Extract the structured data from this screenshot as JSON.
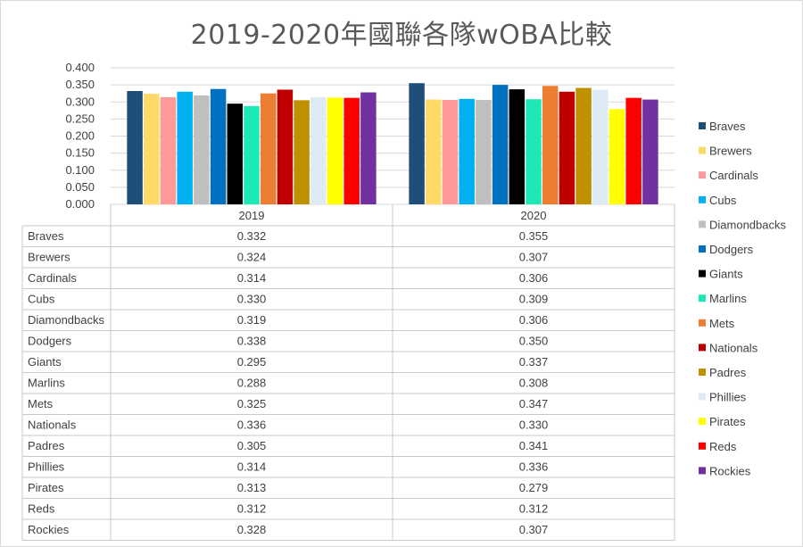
{
  "chart_data": {
    "type": "bar",
    "title": "2019-2020年國聯各隊wOBA比較",
    "categories": [
      "2019",
      "2020"
    ],
    "ylim": [
      0,
      0.4
    ],
    "y_ticks": [
      "0.000",
      "0.050",
      "0.100",
      "0.150",
      "0.200",
      "0.250",
      "0.300",
      "0.350",
      "0.400"
    ],
    "grid": true,
    "legend_position": "right",
    "data_table": true,
    "series": [
      {
        "name": "Braves",
        "color": "#1f4e79",
        "values": [
          0.332,
          0.355
        ],
        "labels": [
          "0.332",
          "0.355"
        ]
      },
      {
        "name": "Brewers",
        "color": "#ffd966",
        "values": [
          0.324,
          0.307
        ],
        "labels": [
          "0.324",
          "0.307"
        ]
      },
      {
        "name": "Cardinals",
        "color": "#ff9999",
        "values": [
          0.314,
          0.306
        ],
        "labels": [
          "0.314",
          "0.306"
        ]
      },
      {
        "name": "Cubs",
        "color": "#00b0f0",
        "values": [
          0.33,
          0.309
        ],
        "labels": [
          "0.330",
          "0.309"
        ]
      },
      {
        "name": "Diamondbacks",
        "color": "#bfbfbf",
        "values": [
          0.319,
          0.306
        ],
        "labels": [
          "0.319",
          "0.306"
        ]
      },
      {
        "name": "Dodgers",
        "color": "#0070c0",
        "values": [
          0.338,
          0.35
        ],
        "labels": [
          "0.338",
          "0.350"
        ]
      },
      {
        "name": "Giants",
        "color": "#000000",
        "values": [
          0.295,
          0.337
        ],
        "labels": [
          "0.295",
          "0.337"
        ]
      },
      {
        "name": "Marlins",
        "color": "#1de9b6",
        "values": [
          0.288,
          0.308
        ],
        "labels": [
          "0.288",
          "0.308"
        ]
      },
      {
        "name": "Mets",
        "color": "#ed7d31",
        "values": [
          0.325,
          0.347
        ],
        "labels": [
          "0.325",
          "0.347"
        ]
      },
      {
        "name": "Nationals",
        "color": "#c00000",
        "values": [
          0.336,
          0.33
        ],
        "labels": [
          "0.336",
          "0.330"
        ]
      },
      {
        "name": "Padres",
        "color": "#bf9000",
        "values": [
          0.305,
          0.341
        ],
        "labels": [
          "0.305",
          "0.341"
        ]
      },
      {
        "name": "Phillies",
        "color": "#deebf7",
        "values": [
          0.314,
          0.336
        ],
        "labels": [
          "0.314",
          "0.336"
        ]
      },
      {
        "name": "Pirates",
        "color": "#ffff00",
        "values": [
          0.313,
          0.279
        ],
        "labels": [
          "0.313",
          "0.279"
        ]
      },
      {
        "name": "Reds",
        "color": "#ff0000",
        "values": [
          0.312,
          0.312
        ],
        "labels": [
          "0.312",
          "0.312"
        ]
      },
      {
        "name": "Rockies",
        "color": "#7030a0",
        "values": [
          0.328,
          0.307
        ],
        "labels": [
          "0.328",
          "0.307"
        ]
      }
    ]
  }
}
